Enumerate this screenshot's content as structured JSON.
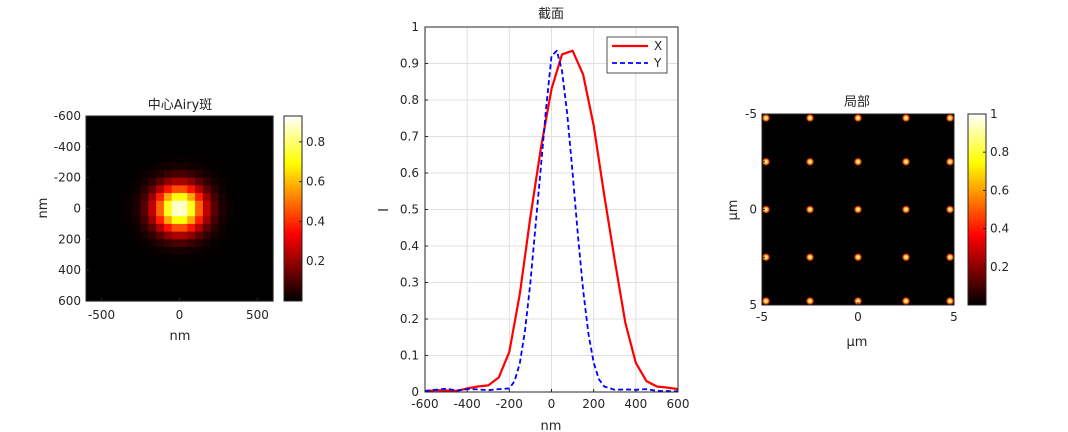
{
  "figure": {
    "background": "#ffffff"
  },
  "chart_data": [
    {
      "type": "heatmap",
      "title": "中心Airy斑",
      "xlabel": "nm",
      "ylabel": "nm",
      "xlim": [
        -600,
        600
      ],
      "ylim": [
        600,
        -600
      ],
      "xticks": [
        -500,
        0,
        500
      ],
      "yticks": [
        -600,
        -400,
        -200,
        0,
        200,
        400,
        600
      ],
      "pixel_size": 50,
      "spot": {
        "center": [
          0,
          0
        ],
        "sigma_x": 110,
        "sigma_y": 105,
        "peak": 0.93
      },
      "colormap": "hot",
      "colorbar": {
        "ticks": [
          0.2,
          0.4,
          0.6,
          0.8
        ],
        "range": [
          0,
          0.93
        ]
      }
    },
    {
      "type": "line",
      "title": "截面",
      "xlabel": "nm",
      "ylabel": "I",
      "xlim": [
        -600,
        600
      ],
      "ylim": [
        0,
        1
      ],
      "xticks": [
        -600,
        -400,
        -200,
        0,
        200,
        400,
        600
      ],
      "yticks": [
        0,
        0.1,
        0.2,
        0.3,
        0.4,
        0.5,
        0.6,
        0.7,
        0.8,
        0.9,
        1
      ],
      "grid": true,
      "legend": "top-right",
      "series": [
        {
          "name": "X",
          "color": "#ff0000",
          "style": "solid",
          "x": [
            -600,
            -550,
            -500,
            -450,
            -400,
            -350,
            -300,
            -250,
            -200,
            -150,
            -100,
            -50,
            0,
            50,
            100,
            150,
            200,
            250,
            300,
            350,
            400,
            450,
            500,
            550,
            600
          ],
          "y": [
            0.002,
            0.005,
            0.004,
            0.003,
            0.01,
            0.015,
            0.018,
            0.04,
            0.11,
            0.27,
            0.48,
            0.67,
            0.83,
            0.925,
            0.935,
            0.87,
            0.73,
            0.54,
            0.36,
            0.19,
            0.08,
            0.03,
            0.015,
            0.012,
            0.008
          ]
        },
        {
          "name": "Y",
          "color": "#0000ff",
          "style": "dashed",
          "x": [
            -600,
            -500,
            -450,
            -400,
            -350,
            -300,
            -250,
            -200,
            -175,
            -150,
            -125,
            -100,
            -75,
            -50,
            -25,
            0,
            25,
            50,
            75,
            100,
            125,
            150,
            175,
            200,
            225,
            250,
            300,
            350,
            400,
            450,
            500,
            600
          ],
          "y": [
            0.003,
            0.009,
            0.004,
            0.008,
            0.007,
            0.005,
            0.008,
            0.01,
            0.03,
            0.08,
            0.17,
            0.3,
            0.46,
            0.62,
            0.78,
            0.92,
            0.935,
            0.88,
            0.76,
            0.6,
            0.43,
            0.28,
            0.16,
            0.08,
            0.035,
            0.015,
            0.006,
            0.007,
            0.006,
            0.008,
            0.003,
            0.002
          ]
        }
      ]
    },
    {
      "type": "heatmap",
      "title": "局部",
      "xlabel": "μm",
      "ylabel": "μm",
      "xlim": [
        -5,
        5
      ],
      "ylim": [
        5,
        -5
      ],
      "xticks": [
        -5,
        0,
        5
      ],
      "yticks": [
        -5,
        -2.5,
        0,
        2.5,
        5
      ],
      "ytick_labels": [
        "-5",
        "",
        "0",
        "",
        "5"
      ],
      "spots": {
        "positions": [
          -5,
          -2.5,
          0,
          2.5,
          5
        ],
        "peak": 1.0,
        "description_units": "μm"
      },
      "colormap": "hot",
      "colorbar": {
        "ticks": [
          0.2,
          0.4,
          0.6,
          0.8,
          1
        ],
        "range": [
          0,
          1
        ]
      }
    }
  ]
}
